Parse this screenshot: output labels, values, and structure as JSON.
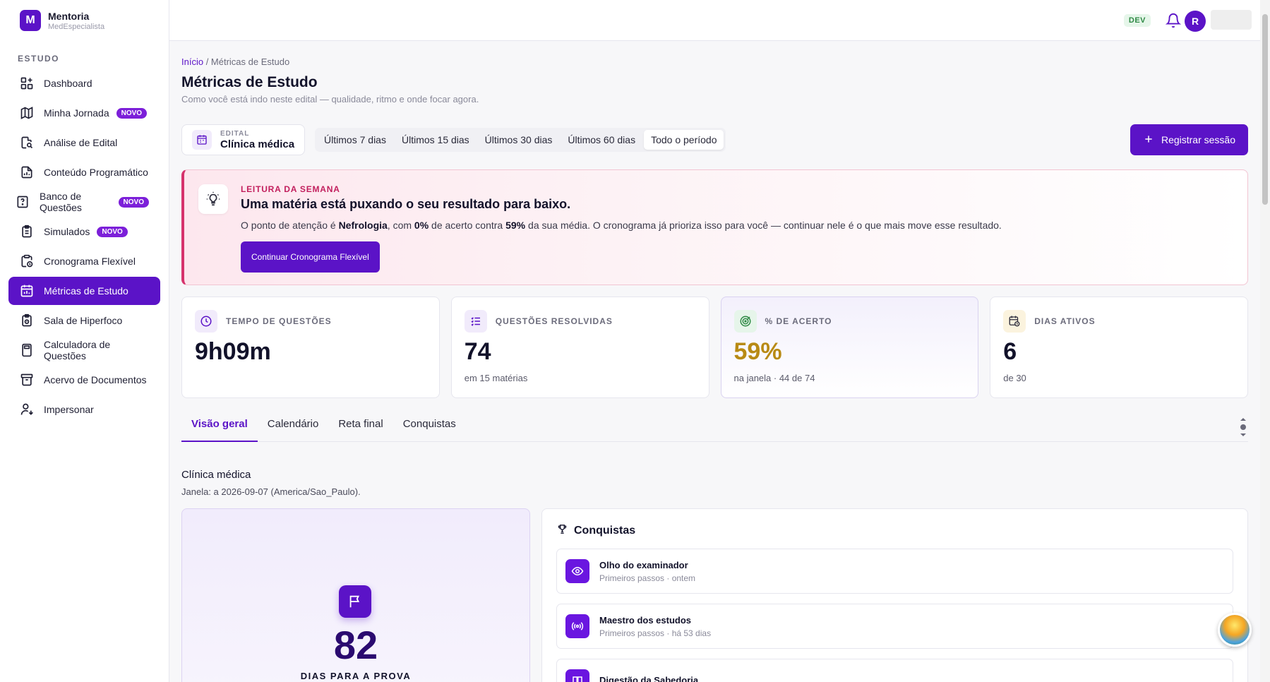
{
  "brand": {
    "logo_letter": "M",
    "title": "Mentoria",
    "subtitle": "MedEspecialista"
  },
  "sidebar": {
    "section": "ESTUDO",
    "items": [
      {
        "label": "Dashboard",
        "icon": "dashboard-icon",
        "badge": ""
      },
      {
        "label": "Minha Jornada",
        "icon": "map-icon",
        "badge": "NOVO"
      },
      {
        "label": "Análise de Edital",
        "icon": "file-search-icon",
        "badge": ""
      },
      {
        "label": "Conteúdo Programático",
        "icon": "file-chart-icon",
        "badge": ""
      },
      {
        "label": "Banco de Questões",
        "icon": "question-file-icon",
        "badge": "NOVO"
      },
      {
        "label": "Simulados",
        "icon": "clipboard-icon",
        "badge": "NOVO"
      },
      {
        "label": "Cronograma Flexível",
        "icon": "clipboard-clock-icon",
        "badge": ""
      },
      {
        "label": "Métricas de Estudo",
        "icon": "calendar-chart-icon",
        "badge": "",
        "active": true
      },
      {
        "label": "Sala de Hiperfoco",
        "icon": "clipboard-timer-icon",
        "badge": ""
      },
      {
        "label": "Calculadora de Questões",
        "icon": "calculator-icon",
        "badge": ""
      },
      {
        "label": "Acervo de Documentos",
        "icon": "archive-icon",
        "badge": ""
      },
      {
        "label": "Impersonar",
        "icon": "user-switch-icon",
        "badge": ""
      }
    ]
  },
  "topbar": {
    "env_badge": "DEV",
    "avatar_letter": "R"
  },
  "breadcrumb": {
    "home": "Início",
    "separator": " / ",
    "current": "Métricas de Estudo"
  },
  "page": {
    "title": "Métricas de Estudo",
    "subtitle": "Como você está indo neste edital — qualidade, ritmo e onde focar agora."
  },
  "filters": {
    "edital_label": "EDITAL",
    "edital_value": "Clínica médica",
    "periods": [
      "Últimos 7 dias",
      "Últimos 15 dias",
      "Últimos 30 dias",
      "Últimos 60 dias",
      "Todo o período"
    ],
    "active_period": 4,
    "register_label": "Registrar sessão"
  },
  "insight": {
    "kicker": "LEITURA DA SEMANA",
    "title": "Uma matéria está puxando o seu resultado para baixo.",
    "text_1": "O ponto de atenção é ",
    "subject": "Nefrologia",
    "text_2": ", com ",
    "accuracy": "0%",
    "text_3": " de acerto contra ",
    "average": "59%",
    "text_4": " da sua média. O cronograma já prioriza isso para você — continuar nele é o que mais move esse resultado.",
    "button": "Continuar Cronograma Flexível"
  },
  "stats": [
    {
      "label": "TEMPO DE QUESTÕES",
      "value": "9h09m",
      "sub": "",
      "icon": "clock-icon"
    },
    {
      "label": "QUESTÕES RESOLVIDAS",
      "value": "74",
      "sub": "em 15 matérias",
      "icon": "list-check-icon"
    },
    {
      "label": "% DE ACERTO",
      "value": "59%",
      "sub": "na janela · 44 de 74",
      "icon": "target-icon"
    },
    {
      "label": "DIAS ATIVOS",
      "value": "6",
      "sub": "de 30",
      "icon": "calendar-clock-icon"
    }
  ],
  "tabs": [
    "Visão geral",
    "Calendário",
    "Reta final",
    "Conquistas"
  ],
  "overview": {
    "title": "Clínica médica",
    "window": "Janela: a 2026-09-07 (America/Sao_Paulo)."
  },
  "countdown": {
    "value": "82",
    "label": "DIAS PARA A PROVA"
  },
  "achievements": {
    "title": "Conquistas",
    "items": [
      {
        "name": "Olho do examinador",
        "meta": "Primeiros passos · ontem",
        "icon": "eye-icon"
      },
      {
        "name": "Maestro dos estudos",
        "meta": "Primeiros passos · há 53 dias",
        "icon": "radio-icon"
      },
      {
        "name": "Digestão da Sabedoria",
        "meta": "",
        "icon": "book-icon"
      }
    ]
  },
  "colors": {
    "primary": "#5b13c7",
    "alert": "#d6336c",
    "gold": "#b88a14",
    "dev_green": "#2f8a45"
  }
}
